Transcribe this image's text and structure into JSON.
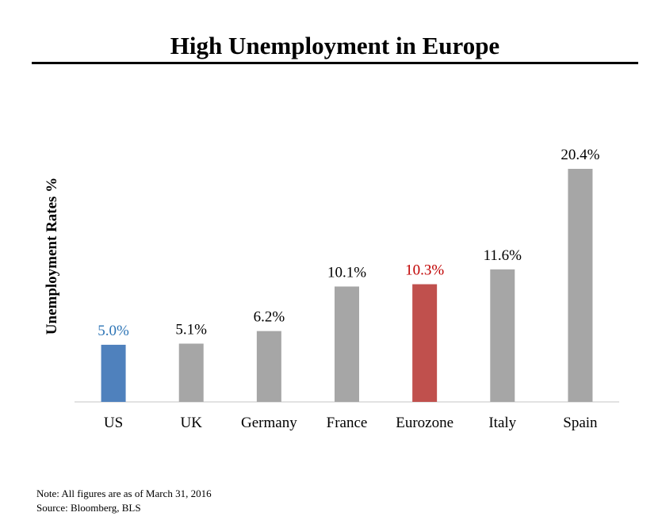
{
  "title": "High Unemployment in Europe",
  "chart_data": {
    "type": "bar",
    "ylabel": "Unemployment Rates %",
    "xlabel": "",
    "categories": [
      "US",
      "UK",
      "Germany",
      "France",
      "Eurozone",
      "Italy",
      "Spain"
    ],
    "values": [
      5.0,
      5.1,
      6.2,
      10.1,
      10.3,
      11.6,
      20.4
    ],
    "value_labels": [
      "5.0%",
      "5.1%",
      "6.2%",
      "10.1%",
      "10.3%",
      "11.6%",
      "20.4%"
    ],
    "ylim": [
      0,
      20.4
    ],
    "grid": false,
    "bar_colors": [
      "#4f81bd",
      "#a6a6a6",
      "#a6a6a6",
      "#a6a6a6",
      "#c0504d",
      "#a6a6a6",
      "#a6a6a6"
    ],
    "label_colors": [
      "#2e75b6",
      "#000000",
      "#000000",
      "#000000",
      "#c00000",
      "#000000",
      "#000000"
    ]
  },
  "footnotes": {
    "note": "Note: All figures are as of March 31, 2016",
    "source": "Source: Bloomberg, BLS"
  }
}
